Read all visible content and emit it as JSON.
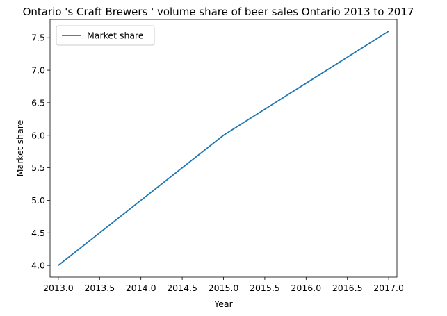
{
  "chart_data": {
    "type": "line",
    "title": "Ontario 's Craft Brewers ' volume share of beer sales Ontario 2013 to 2017",
    "xlabel": "Year",
    "ylabel": "Market share",
    "xlim": [
      2012.9,
      2017.1
    ],
    "ylim": [
      3.82,
      7.78
    ],
    "xticks": [
      2013.0,
      2013.5,
      2014.0,
      2014.5,
      2015.0,
      2015.5,
      2016.0,
      2016.5,
      2017.0
    ],
    "xtick_labels": [
      "2013.0",
      "2013.5",
      "2014.0",
      "2014.5",
      "2015.0",
      "2015.5",
      "2016.0",
      "2016.5",
      "2017.0"
    ],
    "yticks": [
      4.0,
      4.5,
      5.0,
      5.5,
      6.0,
      6.5,
      7.0,
      7.5
    ],
    "ytick_labels": [
      "4.0",
      "4.5",
      "5.0",
      "5.5",
      "6.0",
      "6.5",
      "7.0",
      "7.5"
    ],
    "grid": false,
    "legend_position": "top-left",
    "series": [
      {
        "name": "Market share",
        "color": "#1f77b4",
        "x": [
          2013,
          2014,
          2015,
          2016,
          2017
        ],
        "y": [
          4.0,
          5.0,
          6.0,
          6.8,
          7.6
        ]
      }
    ]
  }
}
